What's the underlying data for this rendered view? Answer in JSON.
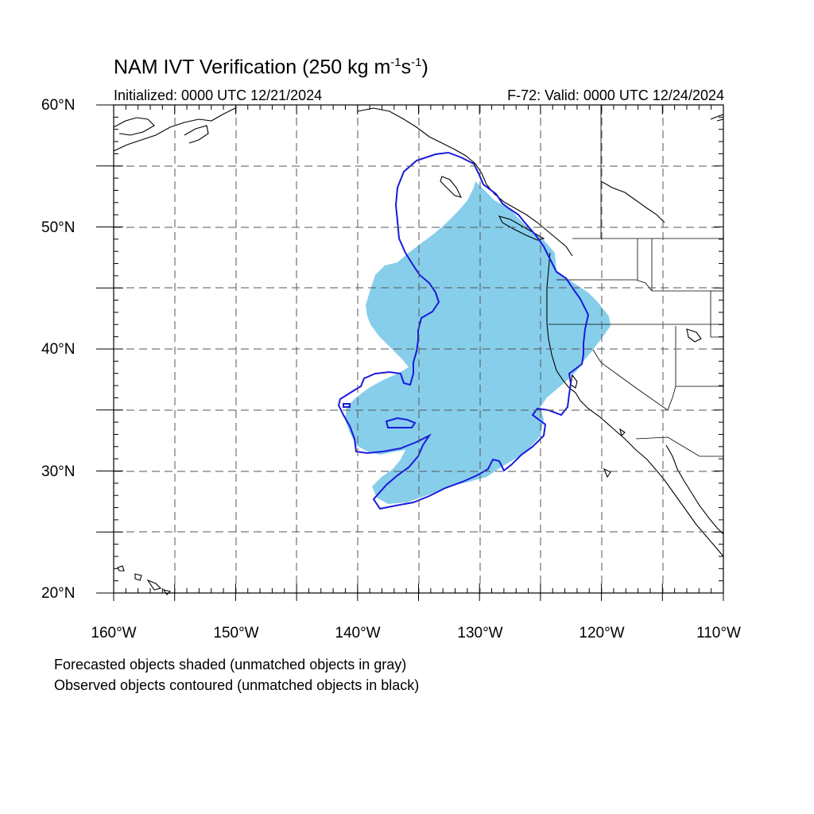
{
  "header": {
    "title_main": "NAM IVT Verification (250 kg m",
    "title_exp1": "-1",
    "title_mid": "s",
    "title_exp2": "-1",
    "title_end": ")",
    "initialized": "Initialized: 0000 UTC 12/21/2024",
    "valid": "F-72: Valid: 0000 UTC 12/24/2024"
  },
  "axes": {
    "lat_labels": [
      "60°N",
      "50°N",
      "40°N",
      "30°N",
      "20°N"
    ],
    "lon_labels": [
      "160°W",
      "150°W",
      "140°W",
      "130°W",
      "120°W",
      "110°W"
    ],
    "lon_range": [
      -160,
      -110
    ],
    "lat_range": [
      20,
      60
    ],
    "grid": "dashed every 5°"
  },
  "legend": {
    "line1": "Forecasted objects shaded (unmatched objects in gray)",
    "line2": "Observed objects contoured (unmatched objects in black)"
  },
  "colors": {
    "forecast_fill": "#87ceeb",
    "observed_contour": "#1a1adc",
    "coastline": "#000000",
    "grid": "#555555"
  }
}
